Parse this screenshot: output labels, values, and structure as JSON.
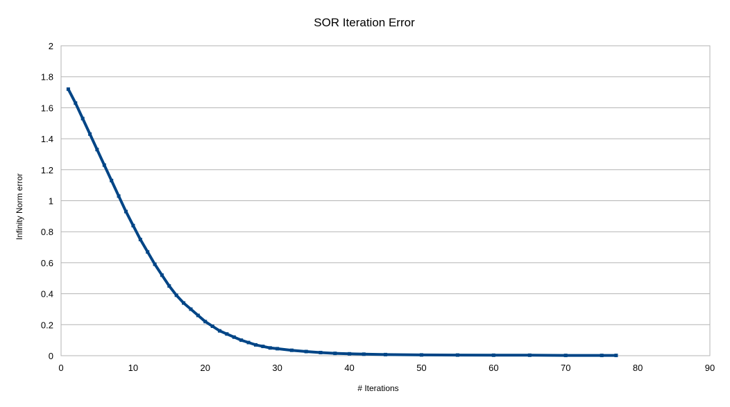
{
  "chart_data": {
    "type": "scatter",
    "title": "SOR Iteration Error",
    "xlabel": "# Iterations",
    "ylabel": "Infinity Norm error",
    "xlim": [
      0,
      90
    ],
    "ylim": [
      0,
      2
    ],
    "x_ticks": [
      "0",
      "10",
      "20",
      "30",
      "40",
      "50",
      "60",
      "70",
      "80",
      "90"
    ],
    "y_ticks": [
      "0",
      "0.2",
      "0.4",
      "0.6",
      "0.8",
      "1",
      "1.2",
      "1.4",
      "1.6",
      "1.8",
      "2"
    ],
    "grid": true,
    "legend": "none",
    "marker_color": "#004586",
    "series": [
      {
        "x": [
          1,
          2,
          3,
          4,
          5,
          6,
          7,
          8,
          9,
          10,
          11,
          12,
          13,
          14,
          15,
          16,
          17,
          18,
          19,
          20,
          21,
          22,
          23,
          24,
          25,
          26,
          27,
          28,
          29,
          30,
          32,
          34,
          36,
          38,
          40,
          42,
          45,
          50,
          55,
          60,
          65,
          70,
          75,
          77
        ],
        "y": [
          1.72,
          1.63,
          1.53,
          1.43,
          1.33,
          1.23,
          1.13,
          1.03,
          0.93,
          0.84,
          0.75,
          0.67,
          0.59,
          0.52,
          0.45,
          0.39,
          0.34,
          0.3,
          0.26,
          0.22,
          0.19,
          0.16,
          0.14,
          0.12,
          0.1,
          0.085,
          0.07,
          0.06,
          0.05,
          0.045,
          0.035,
          0.027,
          0.02,
          0.015,
          0.012,
          0.01,
          0.007,
          0.005,
          0.004,
          0.003,
          0.003,
          0.002,
          0.002,
          0.002
        ]
      }
    ]
  }
}
